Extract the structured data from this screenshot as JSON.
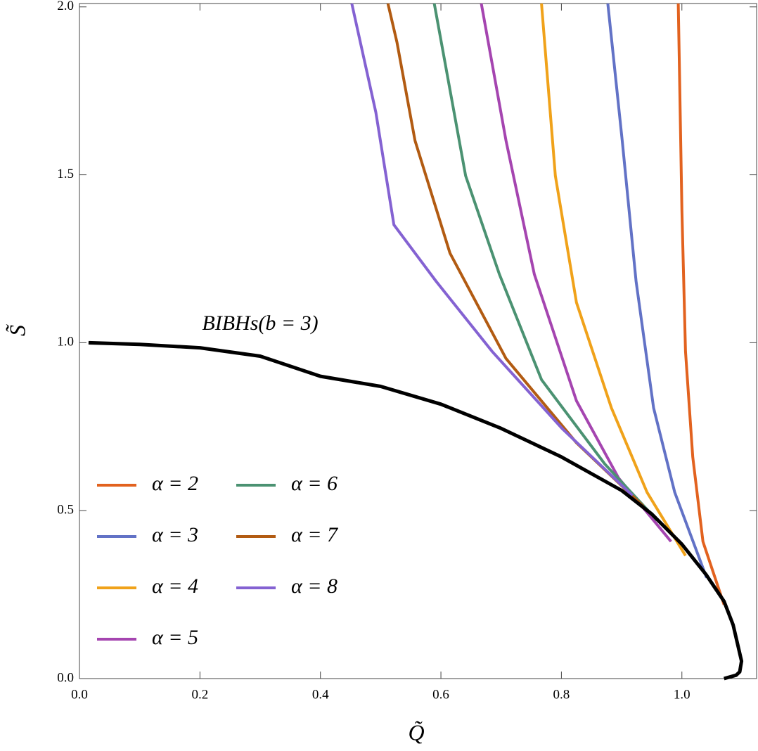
{
  "chart_data": {
    "type": "line",
    "x_label": "Q̃",
    "y_label": "S̃",
    "annotation": "BIBHs(b = 3)",
    "xlim": [
      0,
      1.124
    ],
    "ylim": [
      0,
      2.01
    ],
    "xticks": [
      {
        "value": 0,
        "label": "0.0"
      },
      0.2,
      0.4,
      0.6,
      0.8,
      {
        "value": 1,
        "label": "1.0"
      }
    ],
    "yticks": [
      {
        "value": 0,
        "label": "0.0"
      },
      0.5,
      {
        "value": 1,
        "label": "1.0"
      },
      1.5,
      {
        "value": 2,
        "label": "2.0"
      }
    ],
    "series": [
      {
        "name": "α = 2",
        "color": "#e2621f",
        "x": [
          1.07,
          1.035,
          1.018,
          1.006,
          1.0,
          0.996,
          0.994
        ],
        "values": [
          0.22,
          0.408,
          0.66,
          0.974,
          1.393,
          1.81,
          2.01
        ]
      },
      {
        "name": "α = 3",
        "color": "#6272c6",
        "x": [
          1.041,
          0.988,
          0.953,
          0.924,
          0.901,
          0.877
        ],
        "values": [
          0.3,
          0.555,
          0.806,
          1.183,
          1.602,
          2.01
        ]
      },
      {
        "name": "α = 4",
        "color": "#f0a21a",
        "x": [
          1.006,
          0.942,
          0.883,
          0.825,
          0.79,
          0.767
        ],
        "values": [
          0.366,
          0.555,
          0.806,
          1.12,
          1.497,
          2.01
        ]
      },
      {
        "name": "α = 5",
        "color": "#a545b0",
        "x": [
          0.982,
          0.895,
          0.825,
          0.755,
          0.708,
          0.667
        ],
        "values": [
          0.408,
          0.597,
          0.827,
          1.204,
          1.602,
          2.01
        ]
      },
      {
        "name": "α = 6",
        "color": "#4b9272",
        "x": [
          0.959,
          0.872,
          0.767,
          0.697,
          0.641,
          0.589
        ],
        "values": [
          0.471,
          0.639,
          0.89,
          1.204,
          1.497,
          2.01
        ]
      },
      {
        "name": "α = 7",
        "color": "#b25b12",
        "x": [
          0.936,
          0.825,
          0.708,
          0.615,
          0.557,
          0.527,
          0.512
        ],
        "values": [
          0.513,
          0.702,
          0.953,
          1.267,
          1.602,
          1.895,
          2.01
        ]
      },
      {
        "name": "α = 8",
        "color": "#8462d2",
        "x": [
          0.918,
          0.802,
          0.685,
          0.592,
          0.522,
          0.492,
          0.452
        ],
        "values": [
          0.545,
          0.743,
          0.974,
          1.183,
          1.351,
          1.686,
          2.01
        ]
      },
      {
        "color": "#000000",
        "x": [
          0.015,
          0.1,
          0.2,
          0.3,
          0.4,
          0.5,
          0.6,
          0.7,
          0.8,
          0.9,
          0.95,
          1.0,
          1.04,
          1.07,
          1.085,
          1.099,
          1.096,
          1.09,
          1.07
        ],
        "values": [
          1.0,
          0.995,
          0.985,
          0.96,
          0.9,
          0.87,
          0.817,
          0.745,
          0.66,
          0.56,
          0.49,
          0.4,
          0.31,
          0.23,
          0.16,
          0.052,
          0.02,
          0.01,
          0.0
        ]
      }
    ]
  }
}
